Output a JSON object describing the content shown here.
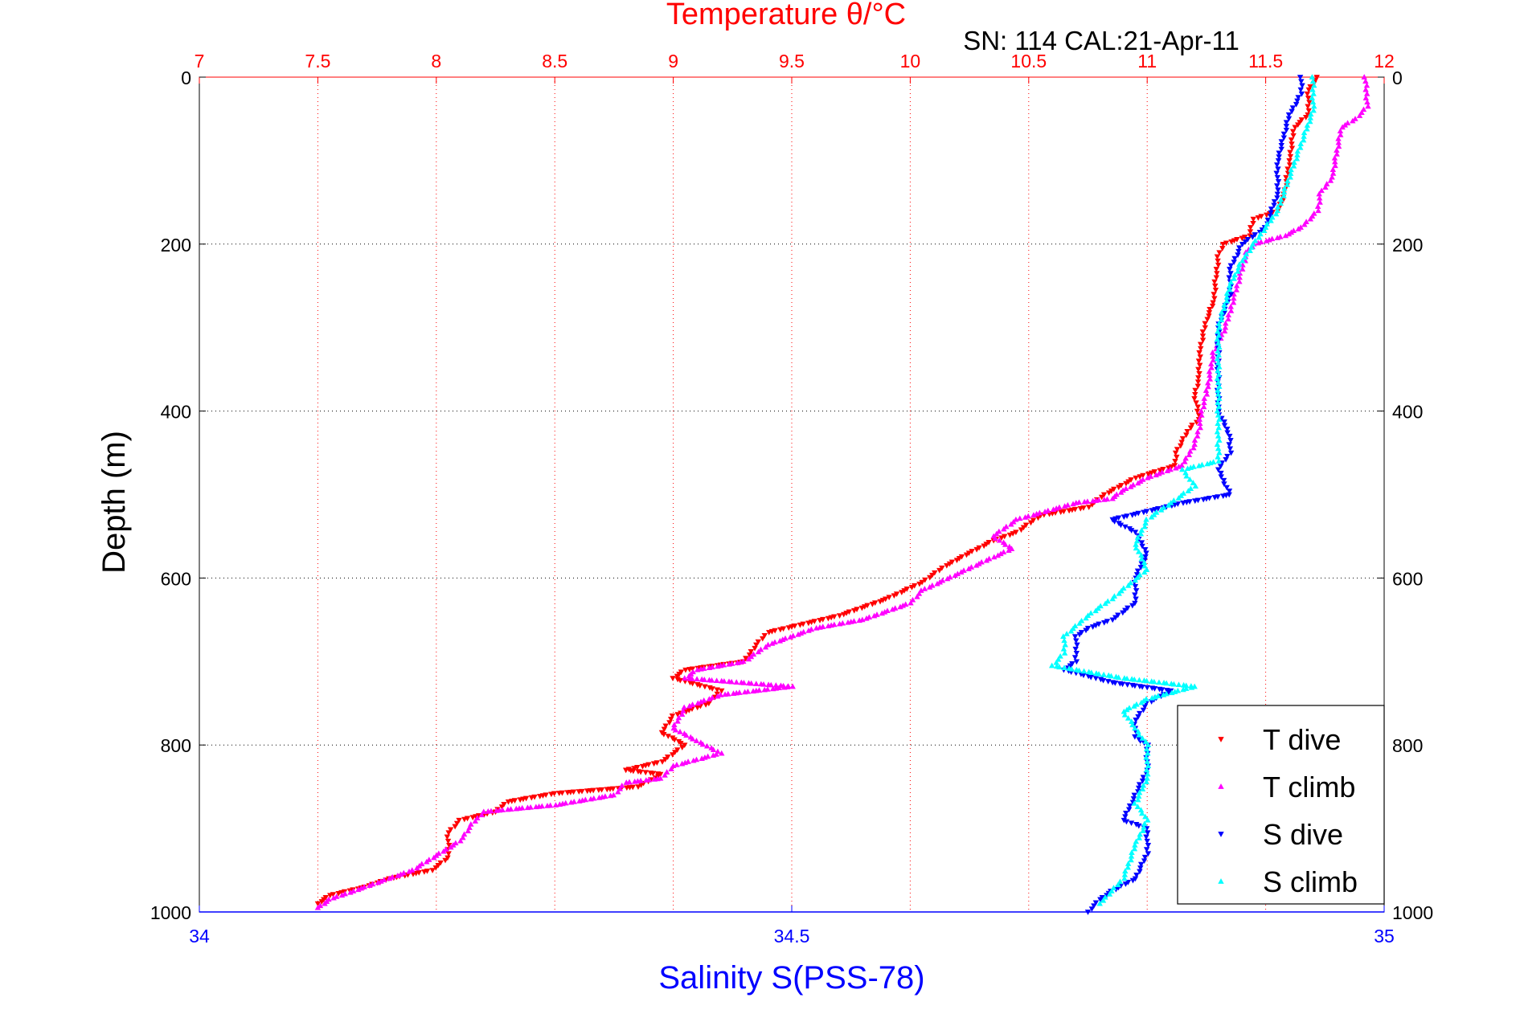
{
  "chart_data": {
    "type": "scatter",
    "title": "Temperature θ/°C",
    "subtitle": "SN: 114  CAL:21-Apr-11",
    "ylabel": "Depth (m)",
    "xlabel": "Salinity S(PSS-78)",
    "ylim": [
      0,
      1000
    ],
    "y_ticks": [
      0,
      200,
      400,
      600,
      800,
      1000
    ],
    "y_reversed": true,
    "temperature_axis": {
      "position": "top",
      "xlim": [
        7,
        12
      ],
      "ticks": [
        "7",
        "7.5",
        "8",
        "8.5",
        "9",
        "9.5",
        "10",
        "10.5",
        "11",
        "11.5",
        "12"
      ]
    },
    "salinity_axis": {
      "position": "bottom",
      "xlim": [
        34,
        35
      ],
      "ticks": [
        "34",
        "34.5",
        "35"
      ]
    },
    "grid": true,
    "legend": {
      "placement": "bottom-right",
      "entries": [
        "T dive",
        "T climb",
        "S dive",
        "S climb"
      ]
    },
    "colors": {
      "title": "#ff0000",
      "salinity": "#0000ff",
      "t_dive": "#ff0000",
      "t_climb": "#ff00ff",
      "s_dive": "#0000ff",
      "s_climb": "#00ffff"
    },
    "series": [
      {
        "name": "T dive",
        "axis": "temperature",
        "color": "#ff0000",
        "marker": "triangle-down",
        "points": [
          [
            11.72,
            0
          ],
          [
            11.68,
            15
          ],
          [
            11.68,
            45
          ],
          [
            11.62,
            60
          ],
          [
            11.6,
            100
          ],
          [
            11.58,
            140
          ],
          [
            11.55,
            160
          ],
          [
            11.45,
            170
          ],
          [
            11.43,
            190
          ],
          [
            11.32,
            200
          ],
          [
            11.3,
            215
          ],
          [
            11.29,
            240
          ],
          [
            11.28,
            270
          ],
          [
            11.25,
            290
          ],
          [
            11.22,
            330
          ],
          [
            11.22,
            360
          ],
          [
            11.2,
            380
          ],
          [
            11.22,
            410
          ],
          [
            11.18,
            420
          ],
          [
            11.12,
            450
          ],
          [
            11.12,
            465
          ],
          [
            10.95,
            480
          ],
          [
            10.82,
            500
          ],
          [
            10.75,
            515
          ],
          [
            10.55,
            525
          ],
          [
            10.45,
            545
          ],
          [
            10.35,
            555
          ],
          [
            10.25,
            570
          ],
          [
            10.15,
            585
          ],
          [
            10.05,
            605
          ],
          [
            9.9,
            625
          ],
          [
            9.7,
            645
          ],
          [
            9.55,
            655
          ],
          [
            9.4,
            665
          ],
          [
            9.35,
            680
          ],
          [
            9.3,
            700
          ],
          [
            9.05,
            710
          ],
          [
            9.0,
            720
          ],
          [
            9.2,
            735
          ],
          [
            9.15,
            750
          ],
          [
            9.0,
            765
          ],
          [
            8.95,
            785
          ],
          [
            9.05,
            800
          ],
          [
            8.95,
            820
          ],
          [
            8.8,
            830
          ],
          [
            8.95,
            835
          ],
          [
            8.85,
            850
          ],
          [
            8.5,
            858
          ],
          [
            8.3,
            868
          ],
          [
            8.25,
            880
          ],
          [
            8.1,
            890
          ],
          [
            8.05,
            905
          ],
          [
            8.05,
            935
          ],
          [
            7.98,
            950
          ],
          [
            7.8,
            960
          ],
          [
            7.7,
            970
          ],
          [
            7.55,
            980
          ],
          [
            7.5,
            990
          ]
        ]
      },
      {
        "name": "T climb",
        "axis": "temperature",
        "color": "#ff00ff",
        "marker": "triangle-up",
        "points": [
          [
            11.92,
            0
          ],
          [
            11.93,
            35
          ],
          [
            11.88,
            50
          ],
          [
            11.82,
            60
          ],
          [
            11.78,
            120
          ],
          [
            11.73,
            140
          ],
          [
            11.72,
            160
          ],
          [
            11.65,
            180
          ],
          [
            11.58,
            190
          ],
          [
            11.45,
            200
          ],
          [
            11.42,
            210
          ],
          [
            11.4,
            230
          ],
          [
            11.38,
            250
          ],
          [
            11.35,
            280
          ],
          [
            11.33,
            300
          ],
          [
            11.28,
            330
          ],
          [
            11.25,
            380
          ],
          [
            11.23,
            400
          ],
          [
            11.22,
            420
          ],
          [
            11.2,
            440
          ],
          [
            11.15,
            465
          ],
          [
            11.0,
            480
          ],
          [
            10.9,
            495
          ],
          [
            10.85,
            505
          ],
          [
            10.7,
            510
          ],
          [
            10.45,
            530
          ],
          [
            10.35,
            550
          ],
          [
            10.43,
            565
          ],
          [
            10.35,
            575
          ],
          [
            10.2,
            595
          ],
          [
            10.05,
            615
          ],
          [
            10.0,
            630
          ],
          [
            9.8,
            650
          ],
          [
            9.6,
            660
          ],
          [
            9.4,
            680
          ],
          [
            9.3,
            700
          ],
          [
            9.1,
            710
          ],
          [
            9.05,
            720
          ],
          [
            9.5,
            730
          ],
          [
            9.2,
            740
          ],
          [
            9.05,
            755
          ],
          [
            9.0,
            780
          ],
          [
            9.1,
            795
          ],
          [
            9.2,
            810
          ],
          [
            9.0,
            825
          ],
          [
            8.95,
            840
          ],
          [
            8.8,
            845
          ],
          [
            8.75,
            860
          ],
          [
            8.5,
            872
          ],
          [
            8.2,
            880
          ],
          [
            8.15,
            895
          ],
          [
            8.1,
            915
          ],
          [
            7.9,
            950
          ],
          [
            7.75,
            965
          ],
          [
            7.65,
            975
          ],
          [
            7.55,
            985
          ],
          [
            7.5,
            995
          ]
        ]
      },
      {
        "name": "S dive",
        "axis": "salinity",
        "color": "#0000ff",
        "marker": "triangle-down",
        "points": [
          [
            34.93,
            0
          ],
          [
            34.93,
            20
          ],
          [
            34.92,
            45
          ],
          [
            34.91,
            100
          ],
          [
            34.91,
            140
          ],
          [
            34.9,
            180
          ],
          [
            34.88,
            200
          ],
          [
            34.87,
            230
          ],
          [
            34.87,
            260
          ],
          [
            34.86,
            300
          ],
          [
            34.86,
            350
          ],
          [
            34.86,
            400
          ],
          [
            34.87,
            430
          ],
          [
            34.87,
            450
          ],
          [
            34.86,
            470
          ],
          [
            34.87,
            500
          ],
          [
            34.83,
            510
          ],
          [
            34.8,
            520
          ],
          [
            34.77,
            530
          ],
          [
            34.79,
            545
          ],
          [
            34.8,
            570
          ],
          [
            34.79,
            600
          ],
          [
            34.79,
            630
          ],
          [
            34.77,
            650
          ],
          [
            34.75,
            660
          ],
          [
            34.74,
            670
          ],
          [
            34.74,
            700
          ],
          [
            34.73,
            710
          ],
          [
            34.77,
            725
          ],
          [
            34.82,
            735
          ],
          [
            34.8,
            750
          ],
          [
            34.79,
            770
          ],
          [
            34.79,
            790
          ],
          [
            34.8,
            800
          ],
          [
            34.8,
            830
          ],
          [
            34.79,
            860
          ],
          [
            34.78,
            890
          ],
          [
            34.8,
            900
          ],
          [
            34.8,
            930
          ],
          [
            34.79,
            960
          ],
          [
            34.77,
            975
          ],
          [
            34.76,
            985
          ],
          [
            34.75,
            1000
          ]
        ]
      },
      {
        "name": "S climb",
        "axis": "salinity",
        "color": "#00ffff",
        "marker": "triangle-up",
        "points": [
          [
            34.94,
            0
          ],
          [
            34.94,
            40
          ],
          [
            34.93,
            80
          ],
          [
            34.92,
            120
          ],
          [
            34.91,
            160
          ],
          [
            34.89,
            200
          ],
          [
            34.88,
            220
          ],
          [
            34.87,
            250
          ],
          [
            34.86,
            300
          ],
          [
            34.86,
            380
          ],
          [
            34.86,
            440
          ],
          [
            34.86,
            460
          ],
          [
            34.83,
            470
          ],
          [
            34.84,
            490
          ],
          [
            34.82,
            510
          ],
          [
            34.8,
            530
          ],
          [
            34.79,
            560
          ],
          [
            34.8,
            590
          ],
          [
            34.77,
            625
          ],
          [
            34.75,
            645
          ],
          [
            34.73,
            670
          ],
          [
            34.73,
            690
          ],
          [
            34.72,
            705
          ],
          [
            34.78,
            720
          ],
          [
            34.84,
            730
          ],
          [
            34.8,
            745
          ],
          [
            34.78,
            760
          ],
          [
            34.79,
            780
          ],
          [
            34.8,
            800
          ],
          [
            34.8,
            840
          ],
          [
            34.79,
            870
          ],
          [
            34.8,
            890
          ],
          [
            34.79,
            920
          ],
          [
            34.78,
            960
          ],
          [
            34.77,
            975
          ],
          [
            34.76,
            990
          ]
        ]
      }
    ]
  }
}
